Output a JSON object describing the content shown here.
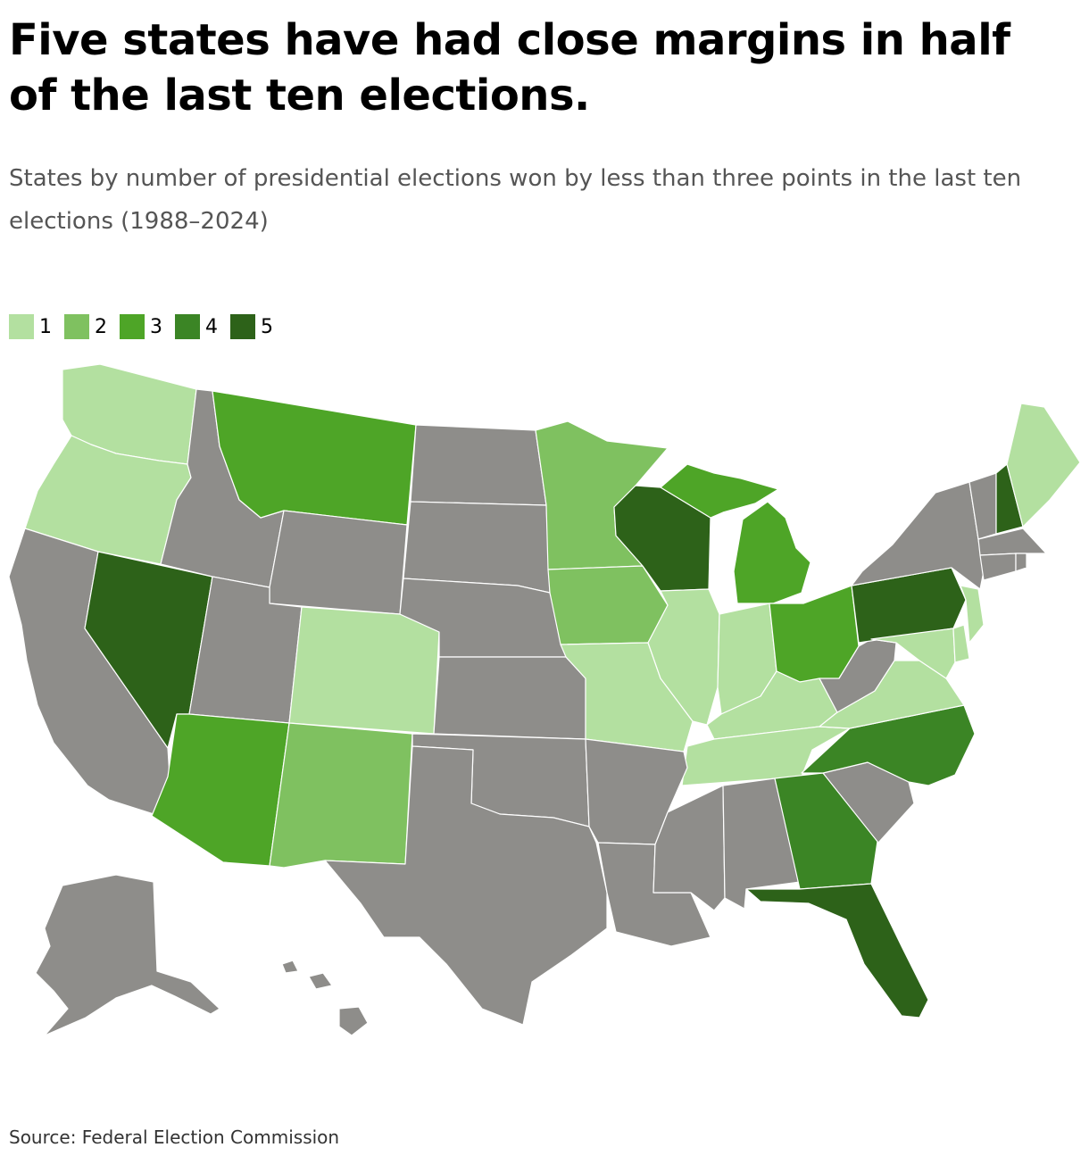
{
  "title": "Five states have had close margins in half of the last ten elections.",
  "subtitle": "States by number of presidential elections won by less than three points in the last ten elections (1988–2024)",
  "legend": [
    {
      "label": "1",
      "color": "#b3e0a0"
    },
    {
      "label": "2",
      "color": "#7fc160"
    },
    {
      "label": "3",
      "color": "#4ea527"
    },
    {
      "label": "4",
      "color": "#3b8525"
    },
    {
      "label": "5",
      "color": "#2d6219"
    }
  ],
  "no_data_color": "#8e8d8a",
  "source": "Source: Federal Election Commission",
  "chart_data": {
    "type": "choropleth",
    "title": "Five states have had close margins in half of the last ten elections.",
    "subtitle": "States by number of presidential elections won by less than three points in the last ten elections (1988–2024)",
    "legend_position": "top-left",
    "states": [
      {
        "state": "WA",
        "value": 1
      },
      {
        "state": "OR",
        "value": 1
      },
      {
        "state": "CO",
        "value": 1
      },
      {
        "state": "MO",
        "value": 1
      },
      {
        "state": "IL",
        "value": 1
      },
      {
        "state": "IN",
        "value": 1
      },
      {
        "state": "KY",
        "value": 1
      },
      {
        "state": "TN",
        "value": 1
      },
      {
        "state": "VA",
        "value": 1
      },
      {
        "state": "MD",
        "value": 1
      },
      {
        "state": "NJ",
        "value": 1
      },
      {
        "state": "ME",
        "value": 1
      },
      {
        "state": "DE",
        "value": 1
      },
      {
        "state": "MN",
        "value": 2
      },
      {
        "state": "IA",
        "value": 2
      },
      {
        "state": "NM",
        "value": 2
      },
      {
        "state": "MT",
        "value": 3
      },
      {
        "state": "AZ",
        "value": 3
      },
      {
        "state": "MI",
        "value": 3
      },
      {
        "state": "OH",
        "value": 3
      },
      {
        "state": "NC",
        "value": 4
      },
      {
        "state": "GA",
        "value": 4
      },
      {
        "state": "NV",
        "value": 5
      },
      {
        "state": "WI",
        "value": 5
      },
      {
        "state": "PA",
        "value": 5
      },
      {
        "state": "NH",
        "value": 5
      },
      {
        "state": "FL",
        "value": 5
      },
      {
        "state": "CA",
        "value": 0
      },
      {
        "state": "ID",
        "value": 0
      },
      {
        "state": "UT",
        "value": 0
      },
      {
        "state": "WY",
        "value": 0
      },
      {
        "state": "ND",
        "value": 0
      },
      {
        "state": "SD",
        "value": 0
      },
      {
        "state": "NE",
        "value": 0
      },
      {
        "state": "KS",
        "value": 0
      },
      {
        "state": "OK",
        "value": 0
      },
      {
        "state": "TX",
        "value": 0
      },
      {
        "state": "AR",
        "value": 0
      },
      {
        "state": "LA",
        "value": 0
      },
      {
        "state": "MS",
        "value": 0
      },
      {
        "state": "AL",
        "value": 0
      },
      {
        "state": "SC",
        "value": 0
      },
      {
        "state": "WV",
        "value": 0
      },
      {
        "state": "NY",
        "value": 0
      },
      {
        "state": "VT",
        "value": 0
      },
      {
        "state": "MA",
        "value": 0
      },
      {
        "state": "CT",
        "value": 0
      },
      {
        "state": "RI",
        "value": 0
      },
      {
        "state": "AK",
        "value": 0
      },
      {
        "state": "HI",
        "value": 0
      }
    ]
  }
}
